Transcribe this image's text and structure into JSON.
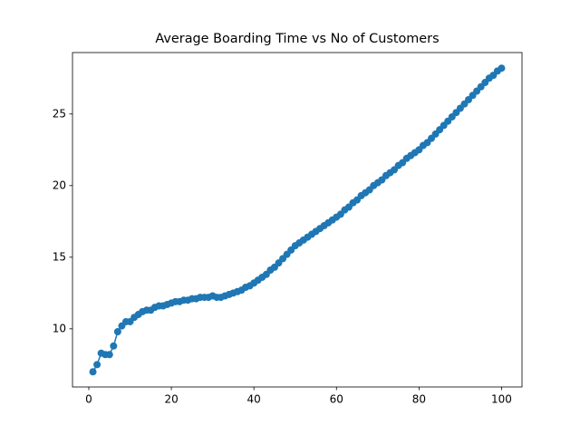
{
  "chart_data": {
    "type": "line",
    "title": "Average Boarding Time vs No of Customers",
    "x": [
      1,
      2,
      3,
      4,
      5,
      6,
      7,
      8,
      9,
      10,
      11,
      12,
      13,
      14,
      15,
      16,
      17,
      18,
      19,
      20,
      21,
      22,
      23,
      24,
      25,
      26,
      27,
      28,
      29,
      30,
      31,
      32,
      33,
      34,
      35,
      36,
      37,
      38,
      39,
      40,
      41,
      42,
      43,
      44,
      45,
      46,
      47,
      48,
      49,
      50,
      51,
      52,
      53,
      54,
      55,
      56,
      57,
      58,
      59,
      60,
      61,
      62,
      63,
      64,
      65,
      66,
      67,
      68,
      69,
      70,
      71,
      72,
      73,
      74,
      75,
      76,
      77,
      78,
      79,
      80,
      81,
      82,
      83,
      84,
      85,
      86,
      87,
      88,
      89,
      90,
      91,
      92,
      93,
      94,
      95,
      96,
      97,
      98,
      99,
      100
    ],
    "series": [
      {
        "color": "#1f77b4",
        "values": [
          7.0,
          7.5,
          8.3,
          8.2,
          8.2,
          8.8,
          9.8,
          10.2,
          10.5,
          10.5,
          10.8,
          11.0,
          11.2,
          11.3,
          11.3,
          11.5,
          11.6,
          11.6,
          11.7,
          11.8,
          11.9,
          11.9,
          12.0,
          12.0,
          12.1,
          12.1,
          12.2,
          12.2,
          12.2,
          12.3,
          12.2,
          12.2,
          12.3,
          12.4,
          12.5,
          12.6,
          12.7,
          12.9,
          13.0,
          13.2,
          13.4,
          13.6,
          13.8,
          14.1,
          14.3,
          14.6,
          14.9,
          15.2,
          15.5,
          15.8,
          16.0,
          16.2,
          16.4,
          16.6,
          16.8,
          17.0,
          17.2,
          17.4,
          17.6,
          17.8,
          18.0,
          18.3,
          18.5,
          18.8,
          19.0,
          19.3,
          19.5,
          19.7,
          20.0,
          20.2,
          20.4,
          20.7,
          20.9,
          21.1,
          21.4,
          21.6,
          21.9,
          22.1,
          22.3,
          22.5,
          22.8,
          23.0,
          23.3,
          23.6,
          23.9,
          24.2,
          24.5,
          24.8,
          25.1,
          25.4,
          25.7,
          26.0,
          26.3,
          26.6,
          26.9,
          27.2,
          27.5,
          27.7,
          28.0,
          28.2
        ]
      }
    ],
    "xlim": [
      -3.95,
      104.95
    ],
    "xticks": [
      0,
      20,
      40,
      60,
      80,
      100
    ],
    "ylim": [
      5.94,
      29.29
    ],
    "yticks": [
      10,
      15,
      20,
      25
    ]
  }
}
